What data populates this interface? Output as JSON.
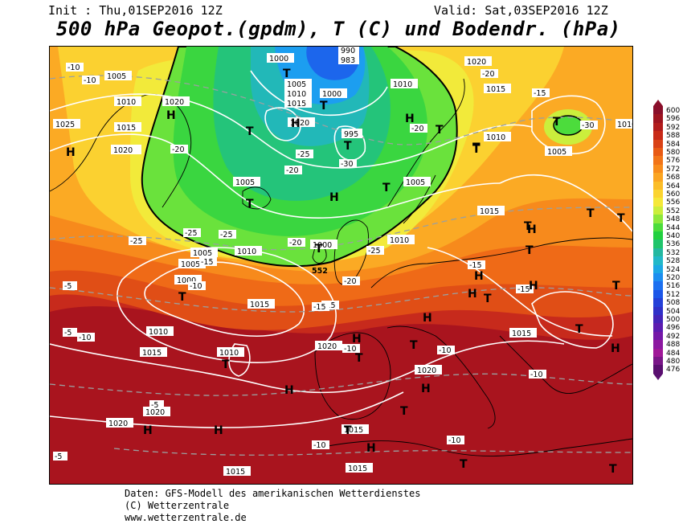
{
  "header": {
    "init": "Init : Thu,01SEP2016 12Z",
    "valid": "Valid: Sat,03SEP2016 12Z",
    "title": "500 hPa Geopot.(gpdm), T (C) und Bodendr. (hPa)"
  },
  "legend": {
    "values": [
      "600",
      "596",
      "592",
      "588",
      "584",
      "580",
      "576",
      "572",
      "568",
      "564",
      "560",
      "556",
      "552",
      "548",
      "544",
      "540",
      "536",
      "532",
      "528",
      "524",
      "520",
      "516",
      "512",
      "508",
      "504",
      "500",
      "496",
      "492",
      "488",
      "484",
      "480",
      "476"
    ],
    "colors": [
      "#8a0f2a",
      "#9e1420",
      "#b21c1c",
      "#c82a18",
      "#d94216",
      "#e85a14",
      "#f27418",
      "#f88c1c",
      "#fba522",
      "#fbbd28",
      "#fbd430",
      "#f5e838",
      "#cbee3c",
      "#8ee83c",
      "#4cdc3c",
      "#22d040",
      "#20c46c",
      "#24b8a0",
      "#22b8c8",
      "#1ca8e4",
      "#1c8ef0",
      "#1c70f0",
      "#1c56e8",
      "#2440d8",
      "#3030c8",
      "#4424b8",
      "#5c1cb0",
      "#7418a8",
      "#8c18a0",
      "#a01898",
      "#7a1688",
      "#5a0f70"
    ]
  },
  "map": {
    "pressure_labels": [
      "1000",
      "1005",
      "1010",
      "1015",
      "1020",
      "1025",
      "995",
      "990",
      "983",
      "1020",
      "1010",
      "1015",
      "1005",
      "1000",
      "1020",
      "1005",
      "1010",
      "1015",
      "1020",
      "1015",
      "1010",
      "1005",
      "1000",
      "1005",
      "1010",
      "1015",
      "1020",
      "1015",
      "1020",
      "1020",
      "1015",
      "1015",
      "1010",
      "1005",
      "1010",
      "1010",
      "1015",
      "1020",
      "1020",
      "1015",
      "1015",
      "1005",
      "1010",
      "1000"
    ],
    "temp_labels": [
      "-10",
      "-10",
      "-20",
      "-25",
      "-20",
      "-25",
      "-30",
      "-25",
      "-20",
      "-15",
      "-10",
      "-5",
      "-15",
      "-20",
      "-25",
      "-30",
      "-20",
      "-15",
      "-10",
      "-5",
      "-10",
      "-5",
      "-10",
      "-15",
      "-10",
      "-25",
      "-15",
      "-10",
      "-5",
      "-20",
      "-10",
      "-15"
    ],
    "contour_label": "552",
    "high_symbol": "H",
    "low_symbol": "T"
  },
  "footer": {
    "line1": "Daten: GFS-Modell des amerikanischen Wetterdienstes",
    "line2": "(C) Wetterzentrale",
    "line3": "www.wetterzentrale.de"
  }
}
